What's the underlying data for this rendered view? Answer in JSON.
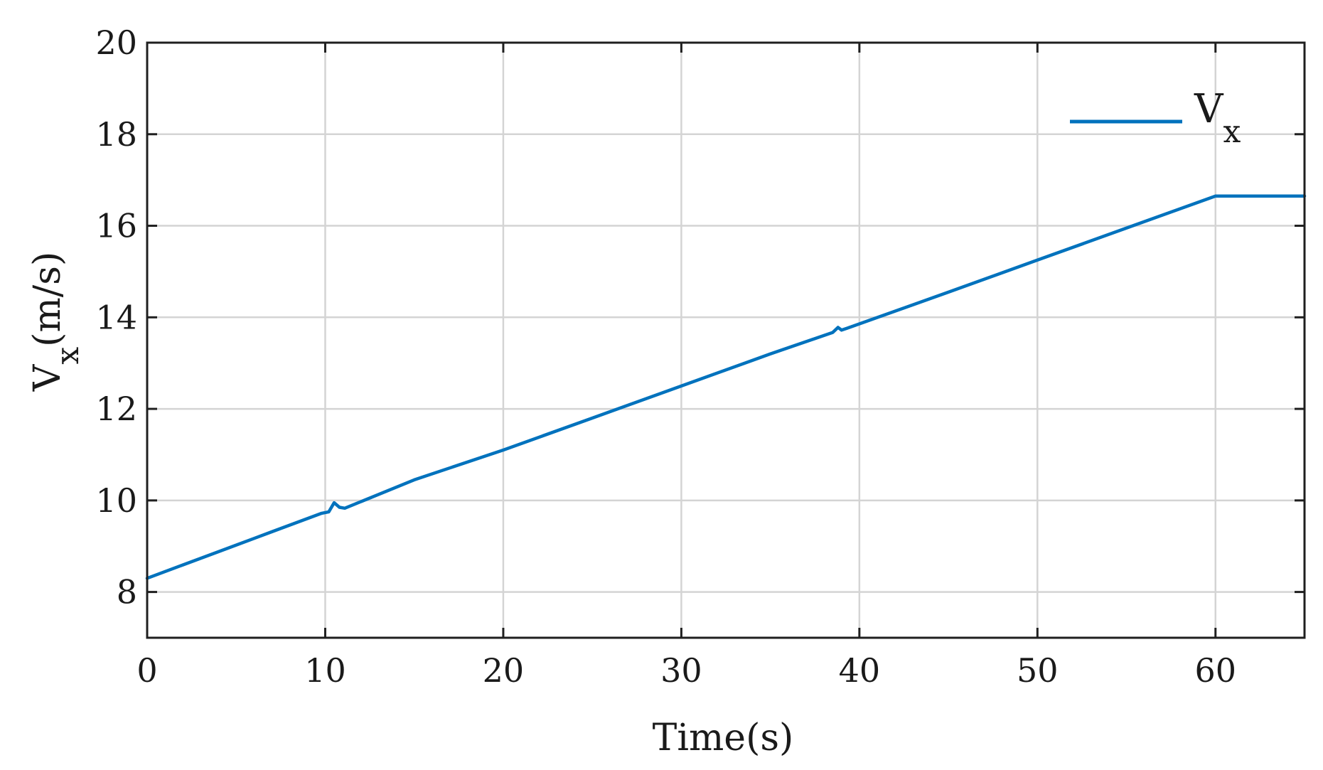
{
  "chart_data": {
    "type": "line",
    "title": "",
    "xlabel": "Time(s)",
    "ylabel_main": "V",
    "ylabel_sub": "x",
    "ylabel_unit": "(m/s)",
    "xlim": [
      0,
      65
    ],
    "ylim": [
      7,
      20
    ],
    "xticks": [
      0,
      10,
      20,
      30,
      40,
      50,
      60
    ],
    "yticks": [
      8,
      10,
      12,
      14,
      16,
      18,
      20
    ],
    "grid": true,
    "legend_position": "top-right",
    "line_color": "#0072BD",
    "series": [
      {
        "name_main": "V",
        "name_sub": "x",
        "x": [
          0,
          2,
          4,
          6,
          8,
          9.8,
          10.2,
          10.5,
          10.8,
          11.1,
          15,
          20,
          25,
          30,
          35,
          38.5,
          38.8,
          39.0,
          39.3,
          45,
          50,
          55,
          60,
          65
        ],
        "y": [
          8.3,
          8.59,
          8.88,
          9.17,
          9.46,
          9.72,
          9.75,
          9.95,
          9.85,
          9.83,
          10.45,
          11.1,
          11.8,
          12.5,
          13.2,
          13.67,
          13.78,
          13.72,
          13.76,
          14.55,
          15.25,
          15.95,
          16.65,
          16.65
        ]
      }
    ]
  }
}
